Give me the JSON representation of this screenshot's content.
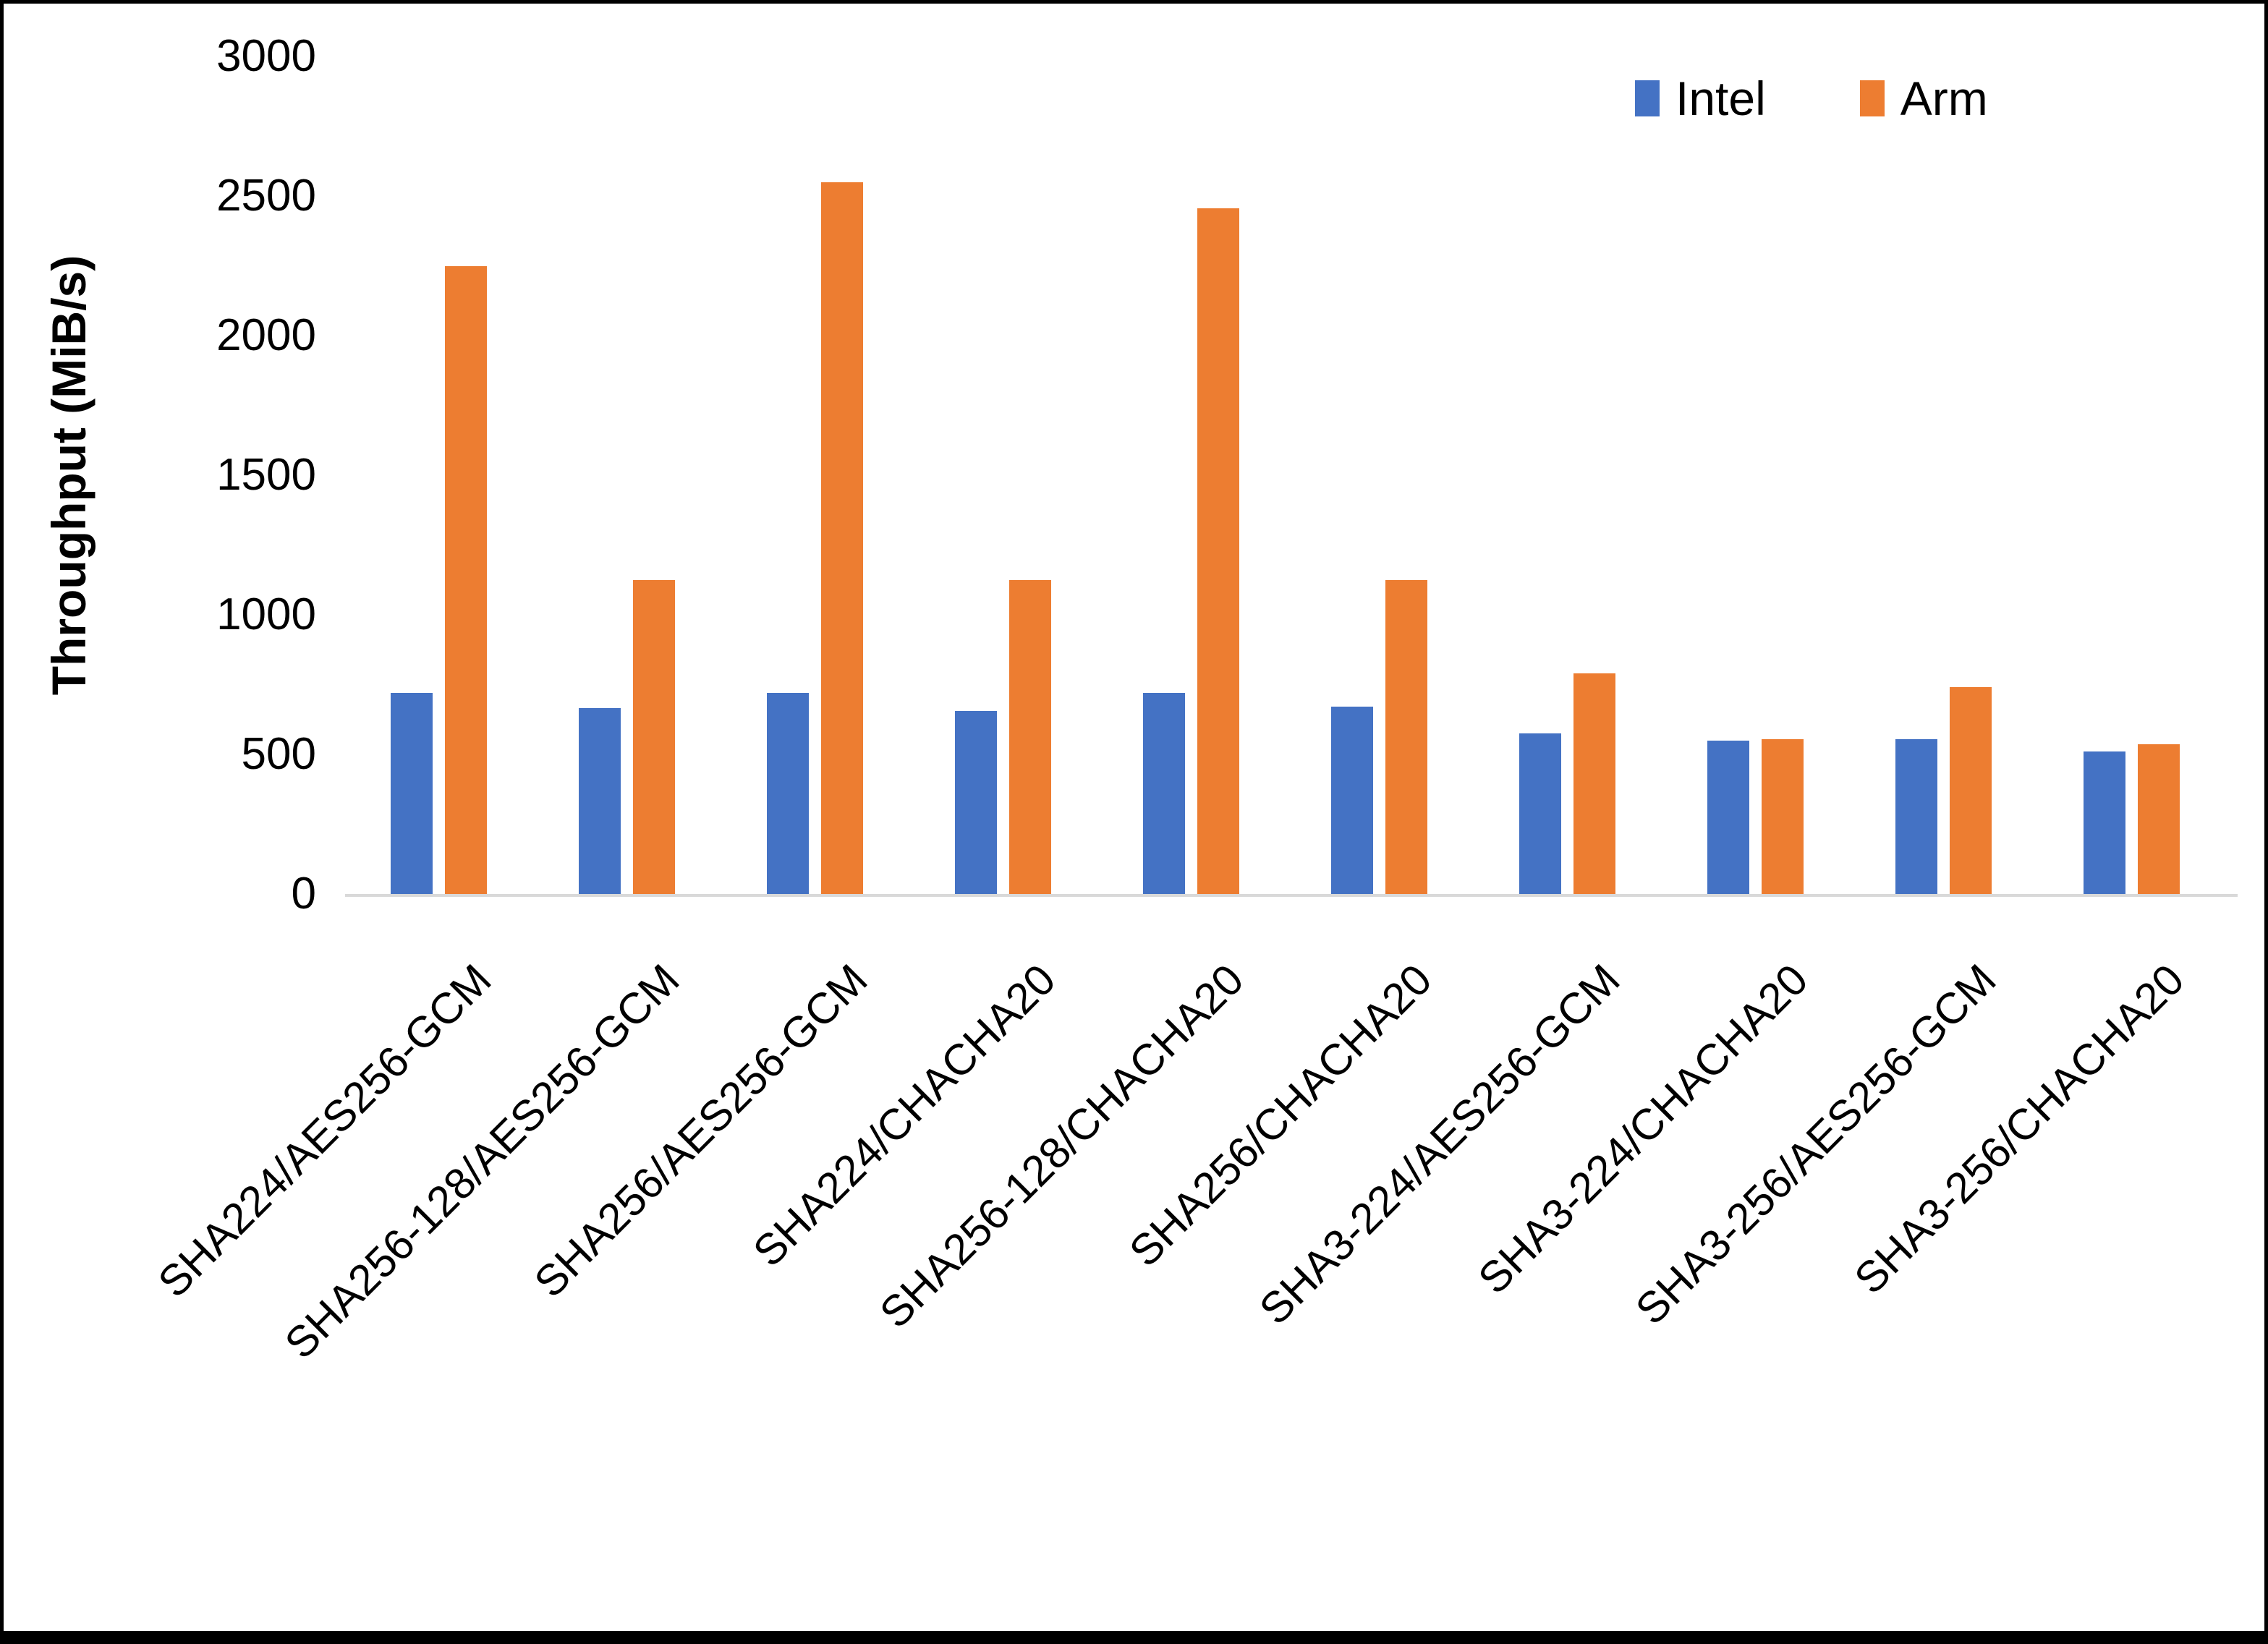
{
  "chart_data": {
    "type": "bar",
    "title": "",
    "xlabel": "",
    "ylabel": "Throughput (MiB/s)",
    "ylim": [
      0,
      3000
    ],
    "yticks": [
      0,
      500,
      1000,
      1500,
      2000,
      2500,
      3000
    ],
    "grid": false,
    "legend_position": "top-right",
    "categories": [
      "SHA224/AES256-GCM",
      "SHA256-128/AES256-GCM",
      "SHA256/AES256-GCM",
      "SHA224/CHACHA20",
      "SHA256-128/CHACHA20",
      "SHA256/CHACHA20",
      "SHA3-224/AES256-GCM",
      "SHA3-224/CHACHA20",
      "SHA3-256/AES256-GCM",
      "SHA3-256/CHACHA20"
    ],
    "series": [
      {
        "name": "Intel",
        "color": "#4472C4",
        "values": [
          720,
          665,
          720,
          655,
          720,
          670,
          575,
          550,
          555,
          510
        ]
      },
      {
        "name": "Arm",
        "color": "#ED7D31",
        "values": [
          2250,
          1125,
          2550,
          1125,
          2455,
          1125,
          790,
          555,
          740,
          535
        ]
      }
    ],
    "axis_line_color": "#D9D9D9"
  }
}
